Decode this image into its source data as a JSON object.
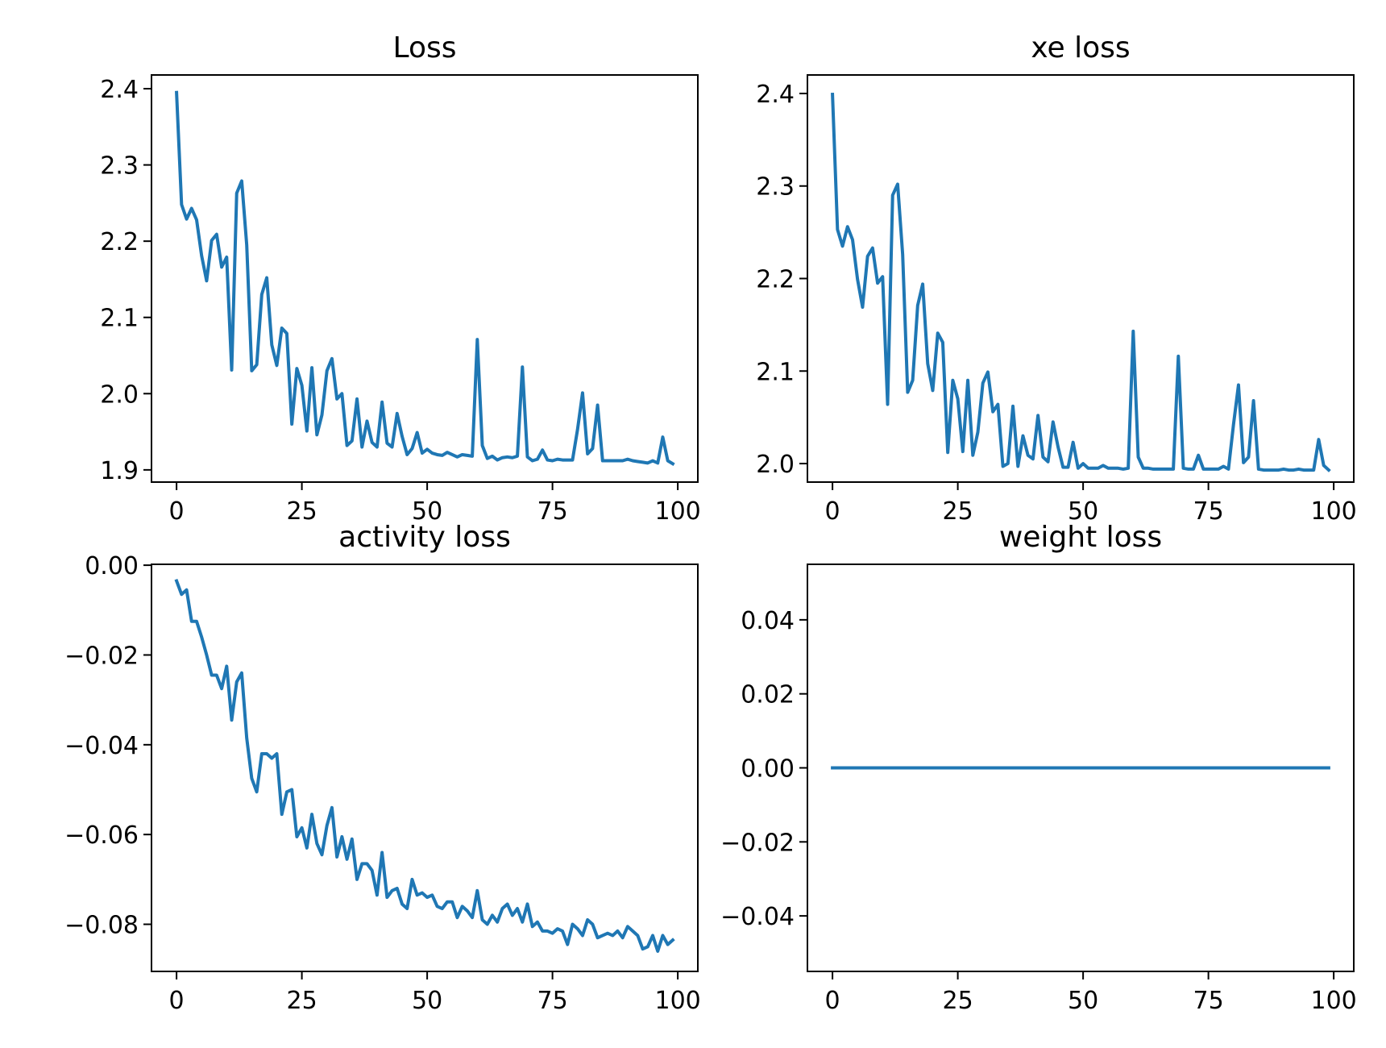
{
  "chart_data": [
    {
      "type": "line",
      "title": "Loss",
      "xlabel": "",
      "ylabel": "",
      "xlim": [
        -5,
        104
      ],
      "ylim": [
        1.884,
        2.418
      ],
      "xticks": [
        0,
        25,
        50,
        75,
        100
      ],
      "xtick_labels": [
        "0",
        "25",
        "50",
        "75",
        "100"
      ],
      "yticks": [
        1.9,
        2.0,
        2.1,
        2.2,
        2.3,
        2.4
      ],
      "ytick_labels": [
        "1.9",
        "2.0",
        "2.1",
        "2.2",
        "2.3",
        "2.4"
      ],
      "grid": false,
      "color": "#1f77b4",
      "series": [
        {
          "x": [
            0,
            1,
            2,
            3,
            4,
            5,
            6,
            7,
            8,
            9,
            10,
            11,
            12,
            13,
            14,
            15,
            16,
            17,
            18,
            19,
            20,
            21,
            22,
            23,
            24,
            25,
            26,
            27,
            28,
            29,
            30,
            31,
            32,
            33,
            34,
            35,
            36,
            37,
            38,
            39,
            40,
            41,
            42,
            43,
            44,
            45,
            46,
            47,
            48,
            49,
            50,
            51,
            52,
            53,
            54,
            55,
            56,
            57,
            58,
            59,
            60,
            61,
            62,
            63,
            64,
            65,
            66,
            67,
            68,
            69,
            70,
            71,
            72,
            73,
            74,
            75,
            76,
            77,
            78,
            79,
            80,
            81,
            82,
            83,
            84,
            85,
            86,
            87,
            88,
            89,
            90,
            91,
            92,
            93,
            94,
            95,
            96,
            97,
            98,
            99
          ],
          "values": [
            2.395,
            2.248,
            2.229,
            2.243,
            2.228,
            2.181,
            2.148,
            2.201,
            2.209,
            2.166,
            2.179,
            2.031,
            2.263,
            2.279,
            2.195,
            2.03,
            2.038,
            2.13,
            2.152,
            2.064,
            2.037,
            2.086,
            2.079,
            1.96,
            2.033,
            2.011,
            1.951,
            2.034,
            1.946,
            1.972,
            2.03,
            2.046,
            1.993,
            2.0,
            1.932,
            1.938,
            1.993,
            1.93,
            1.964,
            1.936,
            1.93,
            1.989,
            1.935,
            1.93,
            1.974,
            1.944,
            1.92,
            1.928,
            1.949,
            1.922,
            1.927,
            1.922,
            1.92,
            1.919,
            1.923,
            1.92,
            1.917,
            1.92,
            1.919,
            1.918,
            2.071,
            1.932,
            1.915,
            1.918,
            1.913,
            1.916,
            1.917,
            1.916,
            1.918,
            2.035,
            1.917,
            1.912,
            1.914,
            1.926,
            1.913,
            1.912,
            1.914,
            1.913,
            1.913,
            1.913,
            1.953,
            2.001,
            1.921,
            1.928,
            1.985,
            1.912,
            1.912,
            1.912,
            1.912,
            1.912,
            1.914,
            1.912,
            1.911,
            1.91,
            1.909,
            1.912,
            1.909,
            1.943,
            1.912,
            1.908
          ]
        }
      ]
    },
    {
      "type": "line",
      "title": "xe loss",
      "xlabel": "",
      "ylabel": "",
      "xlim": [
        -5,
        104
      ],
      "ylim": [
        1.98,
        2.42
      ],
      "xticks": [
        0,
        25,
        50,
        75,
        100
      ],
      "xtick_labels": [
        "0",
        "25",
        "50",
        "75",
        "100"
      ],
      "yticks": [
        2.0,
        2.1,
        2.2,
        2.3,
        2.4
      ],
      "ytick_labels": [
        "2.0",
        "2.1",
        "2.2",
        "2.3",
        "2.4"
      ],
      "grid": false,
      "color": "#1f77b4",
      "series": [
        {
          "x": [
            0,
            1,
            2,
            3,
            4,
            5,
            6,
            7,
            8,
            9,
            10,
            11,
            12,
            13,
            14,
            15,
            16,
            17,
            18,
            19,
            20,
            21,
            22,
            23,
            24,
            25,
            26,
            27,
            28,
            29,
            30,
            31,
            32,
            33,
            34,
            35,
            36,
            37,
            38,
            39,
            40,
            41,
            42,
            43,
            44,
            45,
            46,
            47,
            48,
            49,
            50,
            51,
            52,
            53,
            54,
            55,
            56,
            57,
            58,
            59,
            60,
            61,
            62,
            63,
            64,
            65,
            66,
            67,
            68,
            69,
            70,
            71,
            72,
            73,
            74,
            75,
            76,
            77,
            78,
            79,
            80,
            81,
            82,
            83,
            84,
            85,
            86,
            87,
            88,
            89,
            90,
            91,
            92,
            93,
            94,
            95,
            96,
            97,
            98,
            99
          ],
          "values": [
            2.399,
            2.253,
            2.235,
            2.256,
            2.242,
            2.199,
            2.169,
            2.224,
            2.233,
            2.195,
            2.202,
            2.064,
            2.29,
            2.302,
            2.226,
            2.077,
            2.09,
            2.171,
            2.194,
            2.108,
            2.079,
            2.141,
            2.131,
            2.012,
            2.09,
            2.07,
            2.013,
            2.09,
            2.009,
            2.034,
            2.087,
            2.099,
            2.056,
            2.064,
            1.997,
            2.0,
            2.062,
            1.997,
            2.03,
            2.009,
            2.005,
            2.052,
            2.007,
            2.002,
            2.045,
            2.018,
            1.996,
            1.996,
            2.023,
            1.995,
            2.0,
            1.995,
            1.995,
            1.995,
            1.998,
            1.995,
            1.995,
            1.995,
            1.994,
            1.995,
            2.143,
            2.007,
            1.995,
            1.995,
            1.994,
            1.994,
            1.994,
            1.994,
            1.994,
            2.116,
            1.995,
            1.994,
            1.994,
            2.009,
            1.994,
            1.994,
            1.994,
            1.994,
            1.997,
            1.994,
            2.042,
            2.085,
            2.001,
            2.007,
            2.068,
            1.994,
            1.993,
            1.993,
            1.993,
            1.993,
            1.994,
            1.993,
            1.993,
            1.994,
            1.993,
            1.993,
            1.993,
            2.026,
            1.998,
            1.993
          ]
        }
      ]
    },
    {
      "type": "line",
      "title": "activity loss",
      "xlabel": "",
      "ylabel": "",
      "xlim": [
        -5,
        104
      ],
      "ylim": [
        -0.0905,
        0.0002
      ],
      "xticks": [
        0,
        25,
        50,
        75,
        100
      ],
      "xtick_labels": [
        "0",
        "25",
        "50",
        "75",
        "100"
      ],
      "yticks": [
        0.0,
        -0.02,
        -0.04,
        -0.06,
        -0.08
      ],
      "ytick_labels": [
        "0.00",
        "−0.02",
        "−0.04",
        "−0.06",
        "−0.08"
      ],
      "grid": false,
      "color": "#1f77b4",
      "series": [
        {
          "x": [
            0,
            1,
            2,
            3,
            4,
            5,
            6,
            7,
            8,
            9,
            10,
            11,
            12,
            13,
            14,
            15,
            16,
            17,
            18,
            19,
            20,
            21,
            22,
            23,
            24,
            25,
            26,
            27,
            28,
            29,
            30,
            31,
            32,
            33,
            34,
            35,
            36,
            37,
            38,
            39,
            40,
            41,
            42,
            43,
            44,
            45,
            46,
            47,
            48,
            49,
            50,
            51,
            52,
            53,
            54,
            55,
            56,
            57,
            58,
            59,
            60,
            61,
            62,
            63,
            64,
            65,
            66,
            67,
            68,
            69,
            70,
            71,
            72,
            73,
            74,
            75,
            76,
            77,
            78,
            79,
            80,
            81,
            82,
            83,
            84,
            85,
            86,
            87,
            88,
            89,
            90,
            91,
            92,
            93,
            94,
            95,
            96,
            97,
            98,
            99
          ],
          "values": [
            -0.0035,
            -0.0065,
            -0.0055,
            -0.0125,
            -0.0125,
            -0.016,
            -0.02,
            -0.0245,
            -0.0245,
            -0.0275,
            -0.0225,
            -0.0345,
            -0.026,
            -0.024,
            -0.0385,
            -0.0475,
            -0.0505,
            -0.042,
            -0.042,
            -0.043,
            -0.042,
            -0.0555,
            -0.0505,
            -0.05,
            -0.0605,
            -0.0585,
            -0.063,
            -0.0555,
            -0.062,
            -0.0645,
            -0.058,
            -0.054,
            -0.065,
            -0.0605,
            -0.0655,
            -0.061,
            -0.07,
            -0.0665,
            -0.0665,
            -0.068,
            -0.0735,
            -0.064,
            -0.074,
            -0.0725,
            -0.072,
            -0.0755,
            -0.0765,
            -0.07,
            -0.0735,
            -0.073,
            -0.074,
            -0.0735,
            -0.076,
            -0.0765,
            -0.075,
            -0.075,
            -0.0785,
            -0.076,
            -0.077,
            -0.0785,
            -0.0725,
            -0.079,
            -0.08,
            -0.078,
            -0.0795,
            -0.0765,
            -0.0755,
            -0.078,
            -0.0765,
            -0.0795,
            -0.0755,
            -0.0805,
            -0.0795,
            -0.0815,
            -0.0815,
            -0.082,
            -0.081,
            -0.0815,
            -0.0845,
            -0.08,
            -0.081,
            -0.0825,
            -0.079,
            -0.08,
            -0.083,
            -0.0825,
            -0.082,
            -0.0825,
            -0.0815,
            -0.083,
            -0.0805,
            -0.0815,
            -0.0825,
            -0.0855,
            -0.085,
            -0.0825,
            -0.086,
            -0.0825,
            -0.0845,
            -0.0835
          ]
        }
      ]
    },
    {
      "type": "line",
      "title": "weight loss",
      "xlabel": "",
      "ylabel": "",
      "xlim": [
        -5,
        104
      ],
      "ylim": [
        -0.055,
        0.055
      ],
      "xticks": [
        0,
        25,
        50,
        75,
        100
      ],
      "xtick_labels": [
        "0",
        "25",
        "50",
        "75",
        "100"
      ],
      "yticks": [
        0.04,
        0.02,
        0.0,
        -0.02,
        -0.04
      ],
      "ytick_labels": [
        "0.04",
        "0.02",
        "0.00",
        "−0.02",
        "−0.04"
      ],
      "grid": false,
      "color": "#1f77b4",
      "series": [
        {
          "x": [
            0,
            99
          ],
          "values": [
            0.0,
            0.0
          ]
        }
      ]
    }
  ]
}
